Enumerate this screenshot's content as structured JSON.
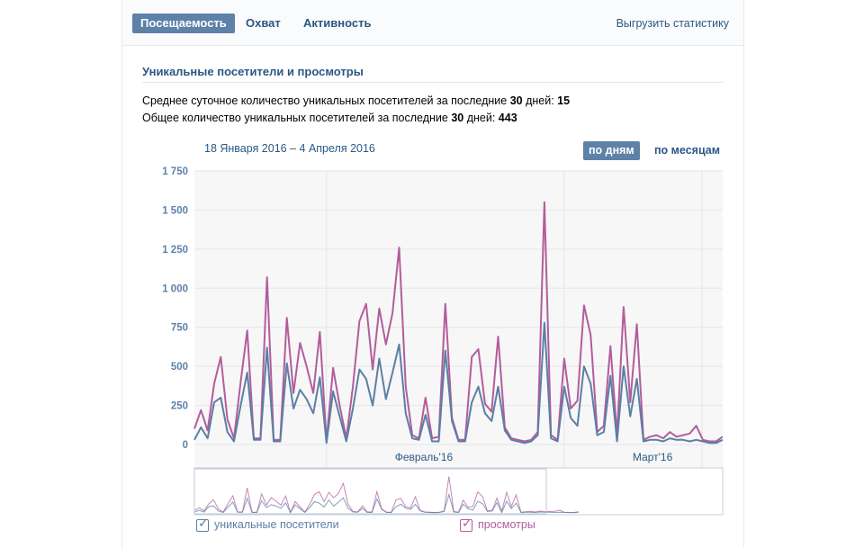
{
  "tabs": [
    {
      "label": "Посещаемость",
      "active": true
    },
    {
      "label": "Охват",
      "active": false
    },
    {
      "label": "Активность",
      "active": false
    }
  ],
  "export_label": "Выгрузить статистику",
  "section_title": "Уникальные посетители и просмотры",
  "stats": {
    "line1_prefix": "Среднее суточное количество уникальных посетителей за последние ",
    "line1_days": "30",
    "line1_mid": " дней: ",
    "line1_value": "15",
    "line2_prefix": "Общее количество уникальных посетителей за последние ",
    "line2_days": "30",
    "line2_mid": " дней: ",
    "line2_value": "443"
  },
  "date_range": "18 Января 2016 – 4 Апреля 2016",
  "granularity": {
    "by_days": "по дням",
    "by_months": "по месяцам"
  },
  "colors": {
    "visitors": "#5b7fa6",
    "views": "#b35d9c",
    "accent": "#5e81a8"
  },
  "chart_data": {
    "type": "line",
    "title": "Уникальные посетители и просмотры",
    "ylim": [
      0,
      1750
    ],
    "y_ticks": [
      0,
      250,
      500,
      750,
      1000,
      1250,
      1500,
      1750
    ],
    "y_tick_labels": [
      "0",
      "250",
      "500",
      "750",
      "1 000",
      "1 250",
      "1 500",
      "1 750"
    ],
    "x_labels": [
      {
        "text": "Февраль'16",
        "day_index": 20
      },
      {
        "text": "Март'16",
        "day_index": 56
      }
    ],
    "x_range_days": 79,
    "series": [
      {
        "name": "уникальные посетители",
        "values": [
          30,
          110,
          40,
          270,
          300,
          80,
          20,
          250,
          460,
          30,
          30,
          620,
          20,
          20,
          520,
          230,
          350,
          290,
          200,
          430,
          10,
          340,
          180,
          20,
          230,
          480,
          420,
          250,
          550,
          290,
          460,
          640,
          200,
          40,
          30,
          190,
          20,
          20,
          600,
          150,
          20,
          20,
          270,
          370,
          200,
          150,
          370,
          90,
          30,
          20,
          10,
          20,
          60,
          780,
          40,
          20,
          370,
          170,
          120,
          500,
          390,
          60,
          80,
          440,
          20,
          500,
          180,
          420,
          20,
          30,
          30,
          20,
          40,
          30,
          30,
          20,
          30,
          20,
          10,
          10,
          30
        ]
      },
      {
        "name": "просмотры",
        "values": [
          100,
          220,
          90,
          390,
          560,
          160,
          40,
          400,
          730,
          40,
          40,
          1070,
          30,
          30,
          810,
          330,
          650,
          500,
          330,
          720,
          20,
          490,
          250,
          40,
          370,
          790,
          900,
          480,
          870,
          640,
          840,
          1260,
          370,
          60,
          40,
          300,
          40,
          50,
          900,
          170,
          30,
          30,
          560,
          610,
          260,
          210,
          690,
          110,
          40,
          30,
          20,
          30,
          80,
          1550,
          60,
          30,
          550,
          230,
          280,
          890,
          700,
          80,
          120,
          630,
          60,
          880,
          270,
          770,
          30,
          50,
          60,
          40,
          80,
          50,
          60,
          70,
          120,
          30,
          20,
          20,
          50
        ]
      }
    ]
  },
  "legend": {
    "visitors": "уникальные посетители",
    "views": "просмотры"
  }
}
